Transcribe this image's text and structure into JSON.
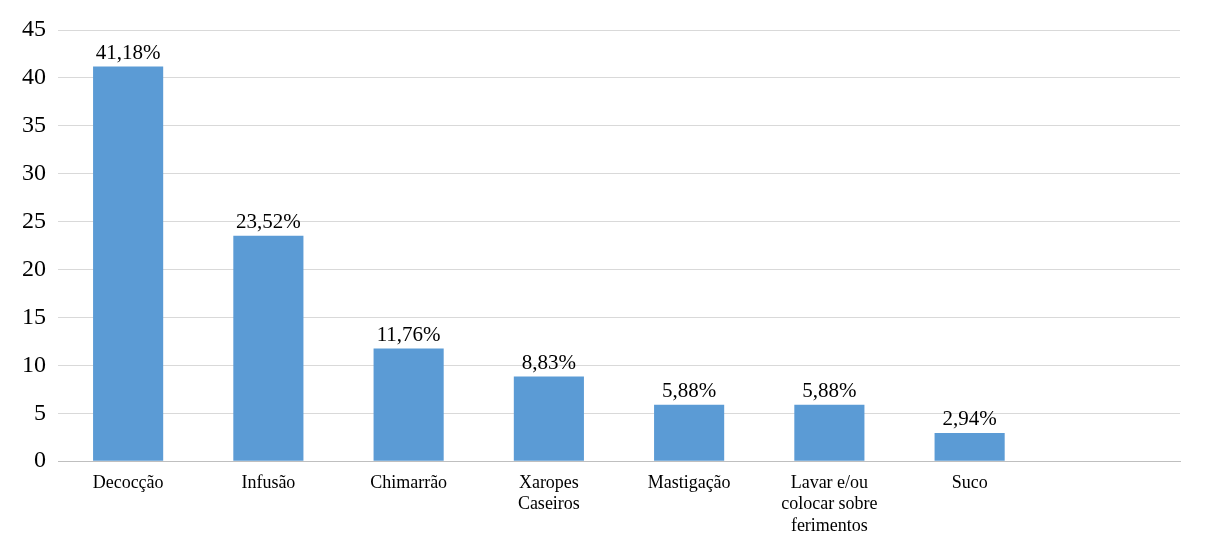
{
  "chart_data": {
    "type": "bar",
    "categories": [
      "Decocção",
      "Infusão",
      "Chimarrão",
      "Xaropes Caseiros",
      "Mastigação",
      "Lavar e/ou colocar sobre ferimentos",
      "Suco",
      null
    ],
    "values": [
      41.18,
      23.52,
      11.76,
      8.83,
      5.88,
      5.88,
      2.94,
      null
    ],
    "value_labels": [
      "41,18%",
      "23,52%",
      "11,76%",
      "8,83%",
      "5,88%",
      "5,88%",
      "2,94%",
      null
    ],
    "color": "#5b9bd5",
    "ylim": [
      0,
      45
    ],
    "yticks": [
      0,
      5,
      10,
      15,
      20,
      25,
      30,
      35,
      40,
      45
    ],
    "grid": "y",
    "legend": false
  }
}
